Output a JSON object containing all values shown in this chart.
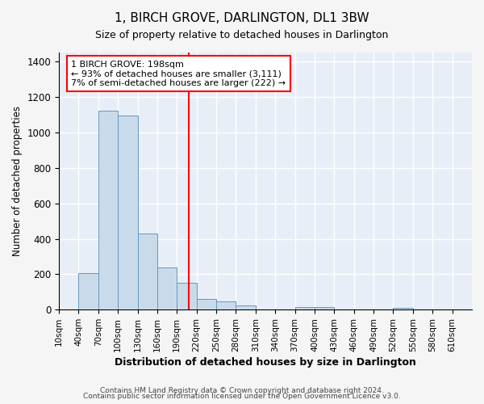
{
  "title": "1, BIRCH GROVE, DARLINGTON, DL1 3BW",
  "subtitle": "Size of property relative to detached houses in Darlington",
  "xlabel": "Distribution of detached houses by size in Darlington",
  "ylabel": "Number of detached properties",
  "bar_color": "#c9daea",
  "bar_edge_color": "#6699bb",
  "background_color": "#e8eef8",
  "grid_color": "#ffffff",
  "fig_background": "#f5f5f5",
  "footer1": "Contains HM Land Registry data © Crown copyright and database right 2024.",
  "footer2": "Contains public sector information licensed under the Open Government Licence v3.0.",
  "annotation_line1": "1 BIRCH GROVE: 198sqm",
  "annotation_line2": "← 93% of detached houses are smaller (3,111)",
  "annotation_line3": "7% of semi-detached houses are larger (222) →",
  "property_line_x": 208,
  "categories": [
    "10sqm",
    "40sqm",
    "70sqm",
    "100sqm",
    "130sqm",
    "160sqm",
    "190sqm",
    "220sqm",
    "250sqm",
    "280sqm",
    "310sqm",
    "340sqm",
    "370sqm",
    "400sqm",
    "430sqm",
    "460sqm",
    "490sqm",
    "520sqm",
    "550sqm",
    "580sqm",
    "610sqm"
  ],
  "bin_starts": [
    10,
    40,
    70,
    100,
    130,
    160,
    190,
    220,
    250,
    280,
    310,
    340,
    370,
    400,
    430,
    460,
    490,
    520,
    550,
    580,
    610
  ],
  "bin_width": 30,
  "values": [
    0,
    207,
    1120,
    1095,
    428,
    240,
    150,
    60,
    45,
    25,
    0,
    0,
    15,
    15,
    0,
    0,
    0,
    10,
    0,
    0,
    0
  ],
  "ylim": [
    0,
    1450
  ],
  "yticks": [
    0,
    200,
    400,
    600,
    800,
    1000,
    1200,
    1400
  ]
}
